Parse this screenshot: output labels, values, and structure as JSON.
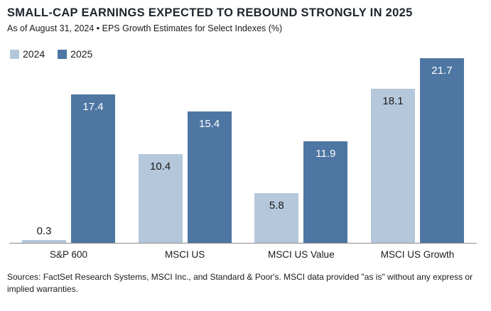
{
  "chart_data": {
    "type": "bar",
    "title": "SMALL-CAP EARNINGS EXPECTED TO REBOUND STRONGLY IN 2025",
    "subtitle": "As of August 31, 2024 • EPS Growth Estimates for Select Indexes (%)",
    "categories": [
      "S&P 600",
      "MSCI US",
      "MSCI US Value",
      "MSCI US Growth"
    ],
    "series": [
      {
        "name": "2024",
        "color": "#b5c7db",
        "label_color": "#1a1a1a",
        "values": [
          0.3,
          10.4,
          5.8,
          18.1
        ]
      },
      {
        "name": "2025",
        "color": "#4e76a2",
        "label_color": "#ffffff",
        "values": [
          17.4,
          15.4,
          11.9,
          21.7
        ]
      }
    ],
    "unit": "%",
    "ylim": [
      0,
      23.5
    ],
    "grid": false,
    "legend_position": "top-left",
    "axis_line_color": "#8c8c8c"
  },
  "footer": {
    "sources": "Sources: FactSet Research Systems, MSCI Inc., and Standard & Poor's. MSCI data provided \"as is\" without any express or implied warranties."
  }
}
